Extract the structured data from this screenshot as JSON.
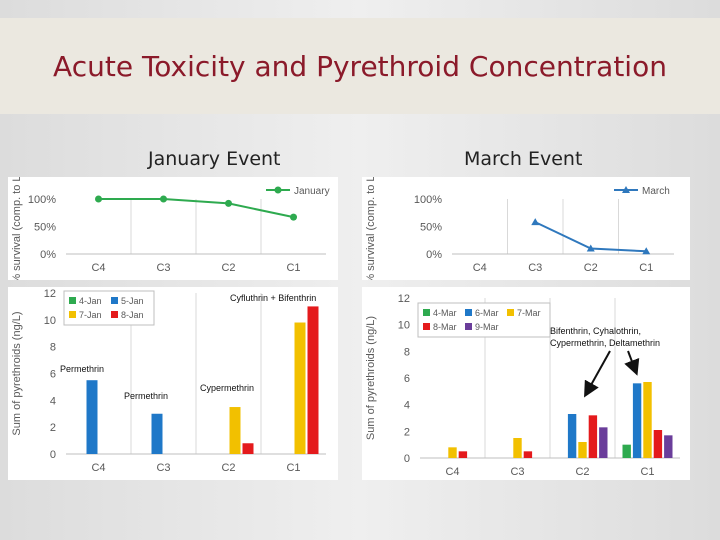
{
  "slide": {
    "title": "Acute Toxicity and Pyrethroid Concentration"
  },
  "sections": {
    "january": "January Event",
    "march": "March Event"
  },
  "colors": {
    "title": "#8b1a2a",
    "survival": "#2eaa4f",
    "survival_march": "#2f78bd",
    "c4jan": "#2eaa4f",
    "c5jan": "#1f78c8",
    "c7jan": "#f2c000",
    "c8jan": "#e41a1c",
    "c4mar": "#2eaa4f",
    "c6mar": "#1f78c8",
    "c7mar": "#f2c000",
    "c8mar": "#e41a1c",
    "c9mar": "#6a3d9a"
  },
  "annotations": {
    "jan_c1": "Cyfluthrin + Bifenthrin",
    "jan_c4": "Permethrin",
    "jan_c3": "Permethrin",
    "jan_c2": "Cypermethrin",
    "mar_line1": "Bifenthrin, Cyhalothrin,",
    "mar_line2": "Cypermethrin, Deltamethrin"
  },
  "chart_data": [
    {
      "type": "line",
      "panel": "january-survival",
      "categories": [
        "C4",
        "C3",
        "C2",
        "C1"
      ],
      "series": [
        {
          "name": "January",
          "values": [
            100,
            100,
            92,
            67
          ]
        }
      ],
      "ylabel": "% survival (comp. to Li)",
      "yticks": [
        "0%",
        "50%",
        "100%"
      ],
      "ylim": [
        0,
        100
      ],
      "legend": "top-right",
      "grid": "vertical"
    },
    {
      "type": "line",
      "panel": "march-survival",
      "categories": [
        "C4",
        "C3",
        "C2",
        "C1"
      ],
      "series": [
        {
          "name": "March",
          "values": [
            null,
            58,
            10,
            5
          ]
        }
      ],
      "ylabel": "% survival (comp. to Li)",
      "yticks": [
        "0%",
        "50%",
        "100%"
      ],
      "ylim": [
        0,
        100
      ],
      "legend": "top-right",
      "grid": "vertical"
    },
    {
      "type": "bar",
      "panel": "january-pyrethroids",
      "categories": [
        "C4",
        "C3",
        "C2",
        "C1"
      ],
      "series": [
        {
          "name": "4-Jan",
          "values": [
            0,
            0,
            0,
            0
          ]
        },
        {
          "name": "5-Jan",
          "values": [
            5.5,
            3.0,
            0,
            0
          ]
        },
        {
          "name": "7-Jan",
          "values": [
            0,
            0,
            3.5,
            9.8
          ]
        },
        {
          "name": "8-Jan",
          "values": [
            0,
            0,
            0.8,
            11.0
          ]
        }
      ],
      "ylabel": "Sum of pyrethroids (ng/L)",
      "yticks": [
        "0",
        "2",
        "4",
        "6",
        "8",
        "10",
        "12"
      ],
      "ylim": [
        0,
        12
      ],
      "legend": "top-left",
      "grid": "vertical"
    },
    {
      "type": "bar",
      "panel": "march-pyrethroids",
      "categories": [
        "C4",
        "C3",
        "C2",
        "C1"
      ],
      "series": [
        {
          "name": "4-Mar",
          "values": [
            0,
            0,
            0,
            1.0
          ]
        },
        {
          "name": "6-Mar",
          "values": [
            0,
            0,
            3.3,
            5.6
          ]
        },
        {
          "name": "7-Mar",
          "values": [
            0.8,
            1.5,
            1.2,
            5.7
          ]
        },
        {
          "name": "8-Mar",
          "values": [
            0.5,
            0.5,
            3.2,
            2.1
          ]
        },
        {
          "name": "9-Mar",
          "values": [
            0,
            0,
            2.3,
            1.7
          ]
        }
      ],
      "ylabel": "Sum of pyrethroids (ng/L)",
      "yticks": [
        "0",
        "2",
        "4",
        "6",
        "8",
        "10",
        "12"
      ],
      "ylim": [
        0,
        12
      ],
      "legend": "top-left",
      "grid": "vertical"
    }
  ]
}
